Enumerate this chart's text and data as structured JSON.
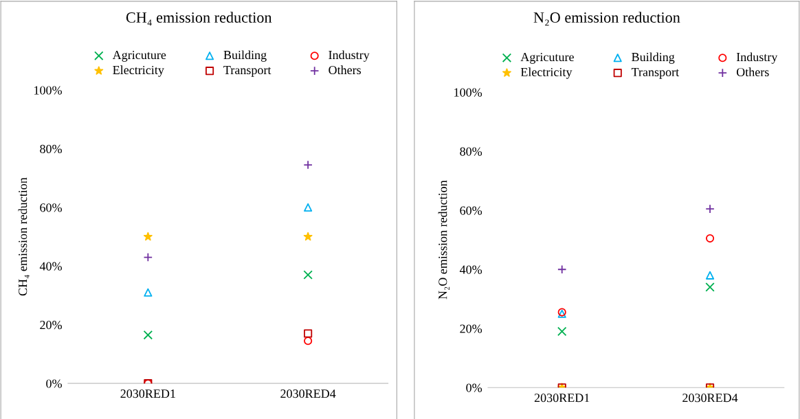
{
  "chart_data": [
    {
      "type": "scatter",
      "title": "CH₄ emission reduction",
      "ylabel": "CH₄ emission reduction",
      "categories": [
        "2030RED1",
        "2030RED4"
      ],
      "ylim": [
        0,
        1
      ],
      "yticks": [
        {
          "value": 0,
          "label": "0%"
        },
        {
          "value": 0.2,
          "label": "20%"
        },
        {
          "value": 0.4,
          "label": "40%"
        },
        {
          "value": 0.6,
          "label": "60%"
        },
        {
          "value": 0.8,
          "label": "80%"
        },
        {
          "value": 1,
          "label": "100%"
        }
      ],
      "grid": false,
      "legend": "top",
      "series": [
        {
          "name": "Agricuture",
          "color": "#00b050",
          "marker": "cross",
          "values": [
            0.165,
            0.37
          ]
        },
        {
          "name": "Building",
          "color": "#00b0f0",
          "marker": "triangle",
          "values": [
            0.31,
            0.6
          ]
        },
        {
          "name": "Industry",
          "color": "#ff0000",
          "marker": "circle",
          "values": [
            0.0,
            0.145
          ]
        },
        {
          "name": "Electricity",
          "color": "#ffc000",
          "marker": "star",
          "values": [
            0.5,
            0.5
          ]
        },
        {
          "name": "Transport",
          "color": "#c00000",
          "marker": "square",
          "values": [
            0.0,
            0.17
          ]
        },
        {
          "name": "Others",
          "color": "#7030a0",
          "marker": "plus",
          "values": [
            0.43,
            0.745
          ]
        }
      ]
    },
    {
      "type": "scatter",
      "title": "N₂O emission reduction",
      "ylabel": "N₂O emission reduction",
      "categories": [
        "2030RED1",
        "2030RED4"
      ],
      "ylim": [
        0,
        1
      ],
      "yticks": [
        {
          "value": 0,
          "label": "0%"
        },
        {
          "value": 0.2,
          "label": "20%"
        },
        {
          "value": 0.4,
          "label": "40%"
        },
        {
          "value": 0.6,
          "label": "60%"
        },
        {
          "value": 0.8,
          "label": "80%"
        },
        {
          "value": 1,
          "label": "100%"
        }
      ],
      "grid": false,
      "legend": "top",
      "series": [
        {
          "name": "Agricuture",
          "color": "#00b050",
          "marker": "cross",
          "values": [
            0.19,
            0.34
          ]
        },
        {
          "name": "Building",
          "color": "#00b0f0",
          "marker": "triangle",
          "values": [
            0.25,
            0.38
          ]
        },
        {
          "name": "Industry",
          "color": "#ff0000",
          "marker": "circle",
          "values": [
            0.255,
            0.505
          ]
        },
        {
          "name": "Electricity",
          "color": "#ffc000",
          "marker": "star",
          "values": [
            0.0,
            0.0
          ]
        },
        {
          "name": "Transport",
          "color": "#c00000",
          "marker": "square",
          "values": [
            0.0,
            0.0
          ]
        },
        {
          "name": "Others",
          "color": "#7030a0",
          "marker": "plus",
          "values": [
            0.4,
            0.605
          ]
        }
      ]
    }
  ]
}
